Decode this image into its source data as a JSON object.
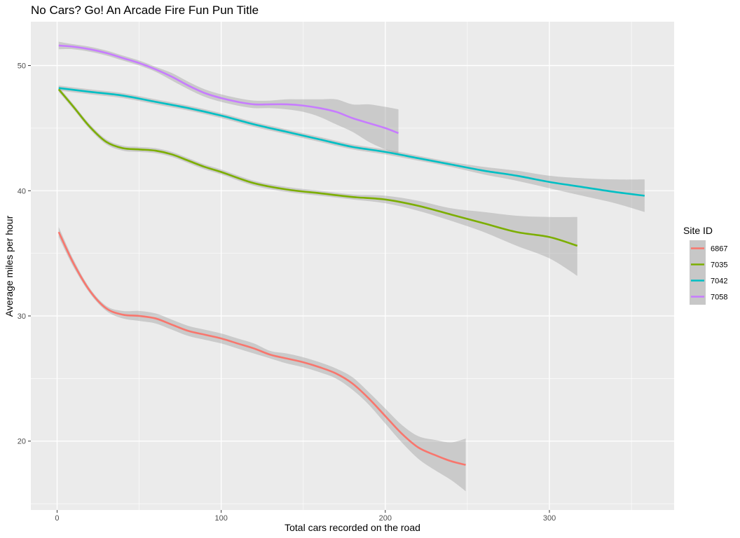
{
  "chart_data": {
    "type": "line",
    "title": "No Cars? Go! An Arcade Fire Fun Pun Title",
    "xlabel": "Total cars recorded on the road",
    "ylabel": "Average miles per hour",
    "xlim": [
      -16,
      376
    ],
    "ylim": [
      14.5,
      53.5
    ],
    "x_ticks": [
      0,
      100,
      200,
      300
    ],
    "x_tick_labels": [
      "0",
      "100",
      "200",
      "300"
    ],
    "x_minor_ticks": [
      50,
      150,
      250,
      350
    ],
    "y_ticks": [
      20,
      30,
      40,
      50
    ],
    "y_tick_labels": [
      "20",
      "30",
      "40",
      "50"
    ],
    "y_minor_ticks": [
      15,
      25,
      35,
      45
    ],
    "grid": true,
    "legend": {
      "title": "Site ID",
      "position": "right"
    },
    "series": [
      {
        "name": "6867",
        "color": "#F8766D",
        "x": [
          1,
          10,
          20,
          30,
          40,
          50,
          60,
          70,
          80,
          90,
          100,
          110,
          120,
          130,
          140,
          150,
          160,
          170,
          180,
          190,
          200,
          210,
          220,
          230,
          240,
          249
        ],
        "y": [
          36.7,
          34.2,
          32.0,
          30.6,
          30.1,
          30.0,
          29.8,
          29.3,
          28.8,
          28.5,
          28.2,
          27.8,
          27.4,
          26.9,
          26.6,
          26.3,
          25.9,
          25.4,
          24.6,
          23.4,
          22.0,
          20.6,
          19.5,
          18.9,
          18.4,
          18.1
        ],
        "lower": [
          36.3,
          33.9,
          31.8,
          30.4,
          29.8,
          29.6,
          29.4,
          28.9,
          28.4,
          28.1,
          27.8,
          27.4,
          27.0,
          26.6,
          26.2,
          25.9,
          25.5,
          25.0,
          24.1,
          22.9,
          21.4,
          19.9,
          18.6,
          17.7,
          16.9,
          16.0
        ],
        "upper": [
          37.1,
          34.5,
          32.2,
          30.8,
          30.4,
          30.4,
          30.2,
          29.7,
          29.2,
          28.9,
          28.6,
          28.2,
          27.8,
          27.2,
          27.0,
          26.7,
          26.3,
          25.8,
          25.1,
          23.9,
          22.6,
          21.3,
          20.4,
          20.1,
          19.9,
          20.2
        ]
      },
      {
        "name": "7035",
        "color": "#7CAE00",
        "x": [
          1,
          10,
          20,
          30,
          40,
          50,
          60,
          70,
          80,
          90,
          100,
          120,
          140,
          160,
          180,
          200,
          220,
          240,
          260,
          280,
          300,
          317
        ],
        "y": [
          48.1,
          46.7,
          45.1,
          43.9,
          43.4,
          43.3,
          43.2,
          42.9,
          42.4,
          41.9,
          41.5,
          40.6,
          40.1,
          39.8,
          39.5,
          39.3,
          38.8,
          38.1,
          37.4,
          36.7,
          36.3,
          35.6
        ],
        "lower": [
          47.9,
          46.5,
          44.9,
          43.7,
          43.2,
          43.1,
          43.0,
          42.7,
          42.2,
          41.7,
          41.3,
          40.4,
          39.9,
          39.6,
          39.3,
          39.0,
          38.4,
          37.6,
          36.7,
          35.6,
          34.6,
          33.2
        ],
        "upper": [
          48.3,
          46.9,
          45.3,
          44.1,
          43.6,
          43.5,
          43.4,
          43.1,
          42.6,
          42.1,
          41.7,
          40.8,
          40.3,
          40.0,
          39.7,
          39.6,
          39.2,
          38.6,
          38.3,
          38.0,
          37.9,
          37.9
        ]
      },
      {
        "name": "7042",
        "color": "#00BFC4",
        "x": [
          1,
          20,
          40,
          60,
          80,
          100,
          120,
          140,
          160,
          180,
          200,
          220,
          240,
          260,
          280,
          300,
          320,
          340,
          358
        ],
        "y": [
          48.2,
          47.9,
          47.6,
          47.1,
          46.6,
          46.0,
          45.3,
          44.7,
          44.1,
          43.5,
          43.1,
          42.6,
          42.1,
          41.6,
          41.2,
          40.7,
          40.3,
          39.9,
          39.6
        ],
        "lower": [
          48.0,
          47.7,
          47.4,
          46.9,
          46.4,
          45.8,
          45.1,
          44.5,
          43.9,
          43.3,
          42.9,
          42.4,
          41.9,
          41.3,
          40.8,
          40.2,
          39.6,
          39.0,
          38.3
        ],
        "upper": [
          48.4,
          48.1,
          47.8,
          47.3,
          46.8,
          46.2,
          45.5,
          44.9,
          44.3,
          43.7,
          43.3,
          42.8,
          42.3,
          41.9,
          41.6,
          41.2,
          41.0,
          40.9,
          40.9
        ]
      },
      {
        "name": "7058",
        "color": "#C77CFF",
        "x": [
          1,
          10,
          20,
          30,
          40,
          50,
          60,
          70,
          80,
          90,
          100,
          110,
          120,
          130,
          140,
          150,
          160,
          170,
          180,
          190,
          200,
          208
        ],
        "y": [
          51.6,
          51.5,
          51.3,
          51.0,
          50.6,
          50.2,
          49.7,
          49.1,
          48.4,
          47.8,
          47.4,
          47.1,
          46.9,
          46.9,
          46.9,
          46.8,
          46.6,
          46.3,
          45.8,
          45.4,
          45.0,
          44.6
        ],
        "lower": [
          51.3,
          51.3,
          51.1,
          50.8,
          50.4,
          50.0,
          49.5,
          48.8,
          48.1,
          47.5,
          47.1,
          46.8,
          46.6,
          46.6,
          46.5,
          46.3,
          45.9,
          45.3,
          44.7,
          43.9,
          43.3,
          42.9
        ],
        "upper": [
          51.9,
          51.7,
          51.5,
          51.2,
          50.8,
          50.4,
          49.9,
          49.4,
          48.7,
          48.1,
          47.7,
          47.4,
          47.2,
          47.2,
          47.3,
          47.3,
          47.3,
          47.3,
          46.9,
          46.9,
          46.7,
          46.5
        ]
      }
    ]
  }
}
